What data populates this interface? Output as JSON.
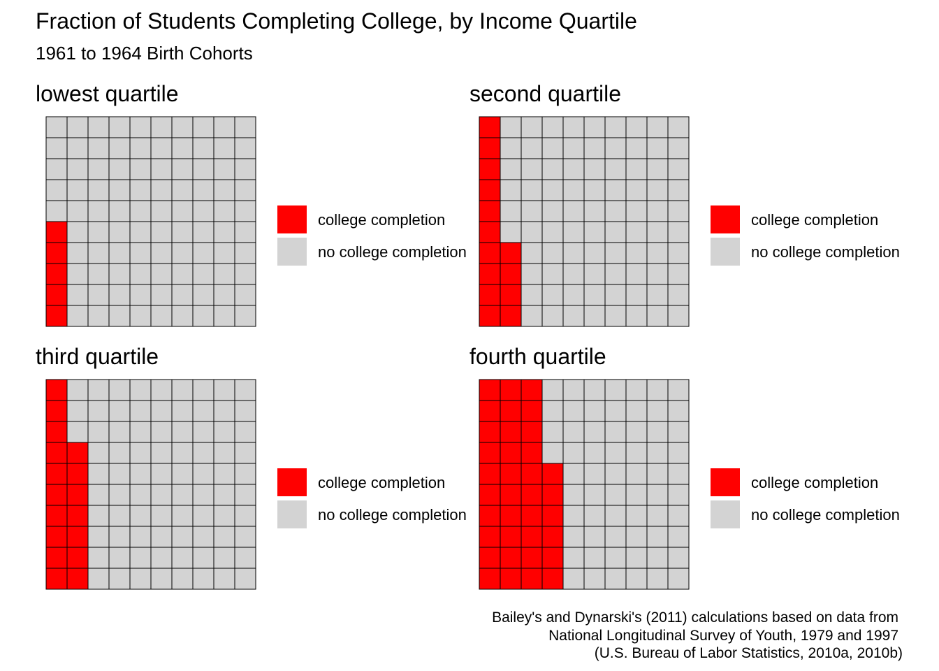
{
  "chart_data": {
    "type": "waffle",
    "title": "Fraction of Students Completing College, by Income Quartile",
    "subtitle": "1961 to 1964 Birth Cohorts",
    "legend": {
      "placement": "right",
      "items": [
        {
          "label": "college completion",
          "color": "#ff0000"
        },
        {
          "label": "no college completion",
          "color": "#d3d3d3"
        }
      ]
    },
    "grid": {
      "rows": 10,
      "cols": 10,
      "total": 100
    },
    "panels": [
      {
        "title": "lowest quartile",
        "college_completion": 5,
        "no_college_completion": 95
      },
      {
        "title": "second quartile",
        "college_completion": 14,
        "no_college_completion": 86
      },
      {
        "title": "third quartile",
        "college_completion": 17,
        "no_college_completion": 83
      },
      {
        "title": "fourth quartile",
        "college_completion": 36,
        "no_college_completion": 64
      }
    ],
    "caption": [
      "Bailey's and Dynarski's (2011) calculations based on data from",
      "National Longitudinal Survey of Youth, 1979 and 1997",
      "(U.S. Bureau of Labor Statistics, 2010a, 2010b)"
    ]
  }
}
